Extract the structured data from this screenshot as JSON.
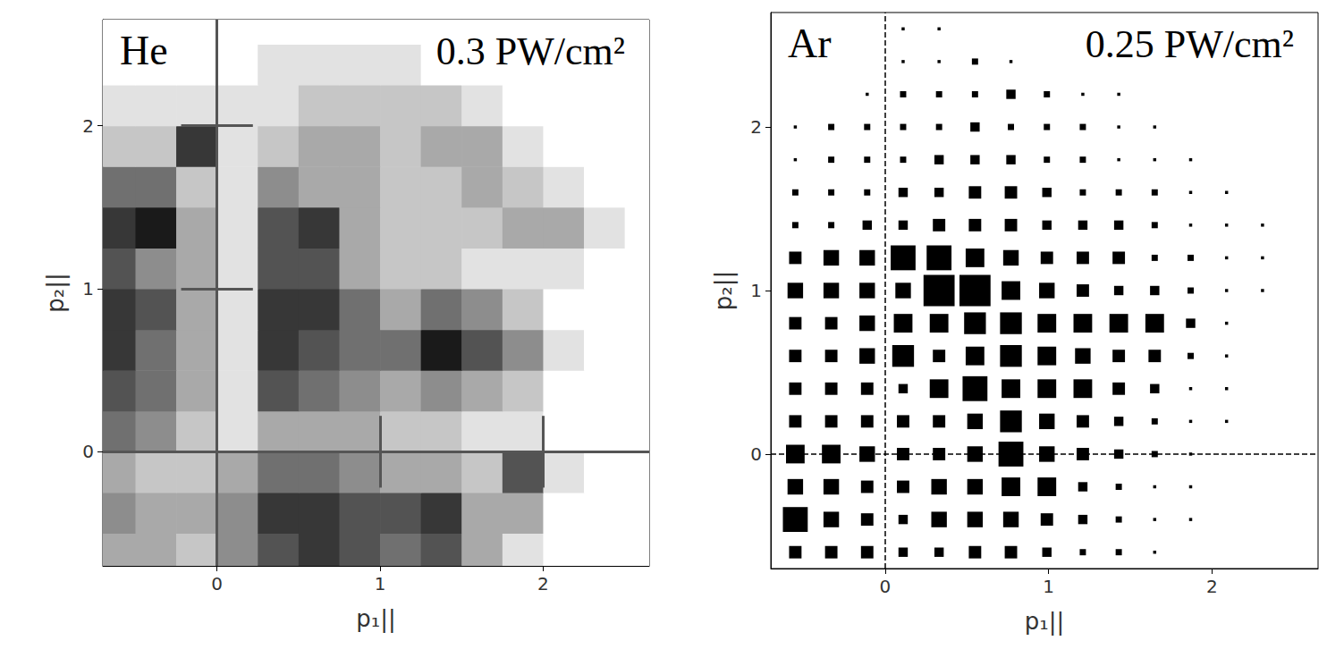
{
  "chart_data": [
    {
      "type": "heatmap",
      "title": "He",
      "subtitle": "0.3 PW/cm²",
      "xlabel": "p₁||",
      "ylabel": "p₂||",
      "xlim": [
        -0.7,
        2.65
      ],
      "ylim": [
        -0.7,
        2.65
      ],
      "xticks": [
        0,
        1,
        2
      ],
      "yticks": [
        0,
        1,
        2
      ],
      "color": "#1a1a1a",
      "line_style": "solid",
      "grid": false,
      "lines": {
        "x": [
          0
        ],
        "y": [
          0
        ]
      },
      "scale_bars": {
        "x": [
          1,
          2
        ],
        "y": [
          1,
          2
        ]
      },
      "x": [
        -0.625,
        -0.375,
        -0.125,
        0.125,
        0.375,
        0.625,
        0.875,
        1.125,
        1.375,
        1.625,
        1.875,
        2.125,
        2.375,
        2.625
      ],
      "y": [
        -0.625,
        -0.375,
        -0.125,
        0.125,
        0.375,
        0.625,
        0.875,
        1.125,
        1.375,
        1.625,
        1.875,
        2.125,
        2.375,
        2.625
      ],
      "z": [
        [
          3,
          3,
          2,
          4,
          6,
          7,
          6,
          5,
          6,
          3,
          1,
          0,
          0,
          0
        ],
        [
          4,
          3,
          3,
          4,
          7,
          7,
          6,
          6,
          7,
          3,
          3,
          0,
          0,
          0
        ],
        [
          3,
          2,
          2,
          3,
          5,
          5,
          4,
          3,
          3,
          2,
          6,
          1,
          0,
          0
        ],
        [
          5,
          4,
          2,
          1,
          3,
          3,
          3,
          2,
          2,
          1,
          1,
          0,
          0,
          0
        ],
        [
          6,
          5,
          3,
          1,
          6,
          5,
          4,
          3,
          4,
          3,
          2,
          0,
          0,
          0
        ],
        [
          7,
          5,
          3,
          1,
          7,
          6,
          5,
          5,
          8,
          6,
          4,
          1,
          0,
          0
        ],
        [
          7,
          6,
          3,
          1,
          7,
          7,
          5,
          3,
          5,
          4,
          2,
          0,
          0,
          0
        ],
        [
          6,
          4,
          3,
          1,
          6,
          6,
          3,
          2,
          2,
          1,
          1,
          1,
          0,
          0
        ],
        [
          7,
          8,
          3,
          1,
          6,
          7,
          3,
          2,
          2,
          2,
          3,
          3,
          1,
          0
        ],
        [
          5,
          5,
          2,
          1,
          4,
          3,
          3,
          2,
          2,
          3,
          2,
          1,
          0,
          0
        ],
        [
          2,
          2,
          7,
          1,
          2,
          3,
          3,
          2,
          3,
          3,
          1,
          0,
          0,
          0
        ],
        [
          1,
          1,
          1,
          1,
          1,
          2,
          2,
          2,
          2,
          1,
          0,
          0,
          0,
          0
        ],
        [
          0,
          0,
          0,
          0,
          1,
          1,
          1,
          1,
          0,
          0,
          0,
          0,
          0,
          0
        ],
        [
          0,
          0,
          0,
          0,
          0,
          0,
          0,
          0,
          0,
          0,
          0,
          0,
          0,
          0
        ]
      ]
    },
    {
      "type": "scatter",
      "title": "Ar",
      "subtitle": "0.25 PW/cm²",
      "xlabel": "p₁||",
      "ylabel": "p₂||",
      "xlim": [
        -0.7,
        2.65
      ],
      "ylim": [
        -0.7,
        2.7
      ],
      "xticks": [
        0,
        1,
        2
      ],
      "yticks": [
        0,
        1,
        2
      ],
      "color": "#000000",
      "marker": "square",
      "line_style": "dashed",
      "grid": false,
      "lines": {
        "x": [
          0
        ],
        "y": [
          0
        ]
      },
      "x": [
        -0.55,
        -0.33,
        -0.11,
        0.11,
        0.33,
        0.55,
        0.77,
        0.99,
        1.21,
        1.43,
        1.65,
        1.87,
        2.09,
        2.31,
        2.53
      ],
      "y": [
        -0.6,
        -0.4,
        -0.2,
        0.0,
        0.2,
        0.4,
        0.6,
        0.8,
        1.0,
        1.2,
        1.4,
        1.6,
        1.8,
        2.0,
        2.2,
        2.4,
        2.6
      ],
      "sizes": [
        [
          4,
          4,
          4,
          3,
          3,
          4,
          4,
          3,
          2,
          2,
          1,
          0,
          0,
          0,
          0
        ],
        [
          8,
          5,
          4,
          3,
          5,
          5,
          5,
          4,
          3,
          2,
          1,
          1,
          0,
          0,
          0
        ],
        [
          5,
          5,
          4,
          4,
          5,
          5,
          6,
          6,
          3,
          2,
          1,
          1,
          0,
          0,
          0
        ],
        [
          6,
          6,
          5,
          4,
          4,
          5,
          8,
          5,
          4,
          3,
          2,
          1,
          0,
          0,
          0
        ],
        [
          4,
          4,
          4,
          4,
          4,
          5,
          7,
          5,
          4,
          3,
          2,
          1,
          1,
          0,
          0
        ],
        [
          4,
          4,
          4,
          3,
          6,
          8,
          6,
          6,
          6,
          4,
          3,
          1,
          1,
          0,
          0
        ],
        [
          4,
          4,
          5,
          7,
          4,
          6,
          7,
          6,
          5,
          4,
          4,
          2,
          1,
          0,
          0
        ],
        [
          4,
          4,
          5,
          6,
          6,
          7,
          7,
          6,
          6,
          6,
          6,
          3,
          1,
          0,
          0
        ],
        [
          5,
          5,
          5,
          5,
          10,
          10,
          6,
          5,
          4,
          3,
          3,
          2,
          1,
          1,
          0
        ],
        [
          4,
          5,
          5,
          8,
          8,
          6,
          5,
          4,
          4,
          4,
          2,
          2,
          1,
          1,
          0
        ],
        [
          2,
          2,
          3,
          3,
          4,
          4,
          4,
          3,
          3,
          3,
          2,
          1,
          1,
          1,
          0
        ],
        [
          2,
          2,
          2,
          3,
          3,
          4,
          4,
          3,
          2,
          2,
          2,
          1,
          1,
          0,
          0
        ],
        [
          1,
          2,
          2,
          2,
          3,
          3,
          3,
          2,
          2,
          1,
          1,
          1,
          0,
          0,
          0
        ],
        [
          1,
          2,
          2,
          2,
          2,
          3,
          2,
          2,
          2,
          1,
          1,
          0,
          0,
          0,
          0
        ],
        [
          0,
          0,
          1,
          2,
          2,
          2,
          3,
          2,
          1,
          1,
          0,
          0,
          0,
          0,
          0
        ],
        [
          0,
          0,
          0,
          1,
          1,
          2,
          1,
          0,
          0,
          0,
          0,
          0,
          0,
          0,
          0
        ],
        [
          0,
          0,
          0,
          1,
          1,
          0,
          0,
          0,
          0,
          0,
          0,
          0,
          0,
          0,
          0
        ]
      ]
    }
  ]
}
